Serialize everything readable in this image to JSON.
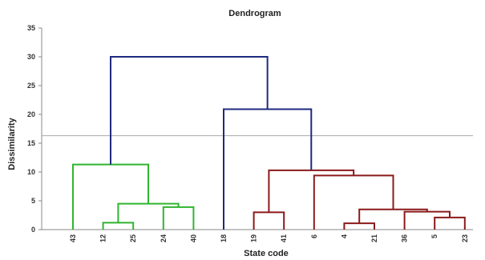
{
  "chart_data": {
    "type": "dendrogram",
    "title": "Dendrogram",
    "xlabel": "State code",
    "ylabel": "Dissimilarity",
    "ylim": [
      0,
      35
    ],
    "yticks": [
      0,
      5,
      10,
      15,
      20,
      25,
      30,
      35
    ],
    "leaves": [
      "43",
      "12",
      "25",
      "24",
      "40",
      "18",
      "19",
      "41",
      "6",
      "4",
      "21",
      "36",
      "5",
      "23"
    ],
    "cut_line": 16.3,
    "colors": {
      "green": "#2fb52f",
      "blue": "#1f2a80",
      "red": "#8b1a1a",
      "axis": "#888888",
      "cut": "#aaaaaa"
    },
    "merges": [
      {
        "a": "L12",
        "b": "L25",
        "height": 1.2,
        "color": "green"
      },
      {
        "a": "L24",
        "b": "L40",
        "height": 3.9,
        "color": "green"
      },
      {
        "a": "M0",
        "b": "M1",
        "height": 4.5,
        "color": "green"
      },
      {
        "a": "L43",
        "b": "M2",
        "height": 11.3,
        "color": "green"
      },
      {
        "a": "L19",
        "b": "L41",
        "height": 3.0,
        "color": "red"
      },
      {
        "a": "L4",
        "b": "L21",
        "height": 1.1,
        "color": "red"
      },
      {
        "a": "L5",
        "b": "L23",
        "height": 2.1,
        "color": "red"
      },
      {
        "a": "L36",
        "b": "M6",
        "height": 3.1,
        "color": "red"
      },
      {
        "a": "M5",
        "b": "M7",
        "height": 3.5,
        "color": "red"
      },
      {
        "a": "L6",
        "b": "M8",
        "height": 9.4,
        "color": "red"
      },
      {
        "a": "M4",
        "b": "M9",
        "height": 10.3,
        "color": "red"
      },
      {
        "a": "L18",
        "b": "M10",
        "height": 20.9,
        "color": "blue"
      },
      {
        "a": "M3",
        "b": "M11",
        "height": 30.0,
        "color": "blue"
      }
    ]
  }
}
